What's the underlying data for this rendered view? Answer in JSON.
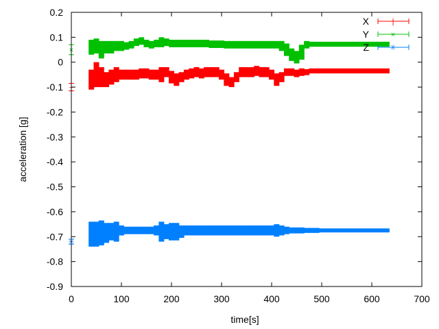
{
  "chart_data": {
    "type": "scatter",
    "title": "",
    "xlabel": "time[s]",
    "ylabel": "acceleration [g]",
    "xlim": [
      0,
      700
    ],
    "ylim": [
      -0.9,
      0.2
    ],
    "xticks": [
      "0",
      "100",
      "200",
      "300",
      "400",
      "500",
      "600",
      "700"
    ],
    "yticks": [
      "0.2",
      "0.1",
      "0",
      "-0.1",
      "-0.2",
      "-0.3",
      "-0.4",
      "-0.5",
      "-0.6",
      "-0.7",
      "-0.8",
      "-0.9"
    ],
    "grid": false,
    "legend_position": "top-right",
    "error_bars": true,
    "x": [
      0,
      40,
      50,
      60,
      70,
      80,
      90,
      100,
      110,
      120,
      130,
      140,
      150,
      160,
      170,
      180,
      190,
      200,
      210,
      220,
      230,
      240,
      250,
      260,
      270,
      280,
      290,
      300,
      310,
      320,
      330,
      340,
      350,
      360,
      370,
      380,
      390,
      400,
      410,
      420,
      430,
      440,
      450,
      460,
      470,
      480,
      490,
      500,
      510,
      520,
      530,
      540,
      550,
      560,
      570,
      580,
      590,
      600,
      610,
      620,
      630
    ],
    "series": [
      {
        "name": "X",
        "color": "#ff0000",
        "values": [
          -0.1,
          -0.07,
          -0.05,
          -0.06,
          -0.07,
          -0.06,
          -0.05,
          -0.05,
          -0.05,
          -0.05,
          -0.05,
          -0.045,
          -0.045,
          -0.05,
          -0.05,
          -0.05,
          -0.04,
          -0.06,
          -0.07,
          -0.06,
          -0.05,
          -0.045,
          -0.04,
          -0.045,
          -0.04,
          -0.04,
          -0.04,
          -0.05,
          -0.07,
          -0.08,
          -0.06,
          -0.04,
          -0.04,
          -0.04,
          -0.035,
          -0.04,
          -0.04,
          -0.05,
          -0.07,
          -0.06,
          -0.04,
          -0.04,
          -0.045,
          -0.04,
          -0.04,
          -0.035,
          -0.035,
          -0.035,
          -0.035,
          -0.035,
          -0.035,
          -0.035,
          -0.035,
          -0.035,
          -0.035,
          -0.035,
          -0.035,
          -0.035,
          -0.035,
          -0.035,
          -0.035
        ],
        "errors": [
          0.015,
          0.04,
          0.05,
          0.04,
          0.03,
          0.03,
          0.03,
          0.02,
          0.02,
          0.02,
          0.02,
          0.02,
          0.02,
          0.02,
          0.02,
          0.03,
          0.02,
          0.025,
          0.025,
          0.02,
          0.02,
          0.02,
          0.02,
          0.02,
          0.02,
          0.02,
          0.02,
          0.02,
          0.025,
          0.02,
          0.02,
          0.02,
          0.02,
          0.02,
          0.02,
          0.02,
          0.02,
          0.02,
          0.025,
          0.02,
          0.015,
          0.015,
          0.015,
          0.015,
          0.012,
          0.01,
          0.01,
          0.01,
          0.01,
          0.01,
          0.01,
          0.01,
          0.01,
          0.01,
          0.01,
          0.01,
          0.01,
          0.01,
          0.01,
          0.01,
          0.01
        ]
      },
      {
        "name": "Y",
        "color": "#00c000",
        "values": [
          0.05,
          0.06,
          0.065,
          0.05,
          0.06,
          0.06,
          0.065,
          0.065,
          0.065,
          0.07,
          0.08,
          0.085,
          0.075,
          0.07,
          0.075,
          0.08,
          0.08,
          0.075,
          0.075,
          0.075,
          0.075,
          0.075,
          0.075,
          0.075,
          0.075,
          0.072,
          0.072,
          0.072,
          0.07,
          0.07,
          0.07,
          0.07,
          0.07,
          0.07,
          0.07,
          0.07,
          0.07,
          0.07,
          0.07,
          0.065,
          0.05,
          0.03,
          0.02,
          0.04,
          0.07,
          0.072,
          0.072,
          0.072,
          0.072,
          0.072,
          0.072,
          0.072,
          0.072,
          0.072,
          0.072,
          0.072,
          0.072,
          0.072,
          0.072,
          0.072,
          0.072
        ],
        "errors": [
          0.02,
          0.03,
          0.03,
          0.035,
          0.025,
          0.025,
          0.02,
          0.02,
          0.015,
          0.015,
          0.015,
          0.015,
          0.015,
          0.015,
          0.015,
          0.02,
          0.015,
          0.015,
          0.015,
          0.015,
          0.015,
          0.015,
          0.015,
          0.015,
          0.015,
          0.015,
          0.015,
          0.015,
          0.015,
          0.015,
          0.015,
          0.015,
          0.015,
          0.015,
          0.015,
          0.015,
          0.015,
          0.015,
          0.015,
          0.02,
          0.025,
          0.025,
          0.025,
          0.03,
          0.015,
          0.01,
          0.01,
          0.01,
          0.01,
          0.01,
          0.01,
          0.01,
          0.01,
          0.01,
          0.01,
          0.01,
          0.01,
          0.01,
          0.01,
          0.01,
          0.01
        ]
      },
      {
        "name": "Z",
        "color": "#0080ff",
        "values": [
          -0.72,
          -0.69,
          -0.69,
          -0.685,
          -0.685,
          -0.68,
          -0.68,
          -0.675,
          -0.675,
          -0.675,
          -0.675,
          -0.675,
          -0.675,
          -0.675,
          -0.675,
          -0.68,
          -0.68,
          -0.68,
          -0.68,
          -0.68,
          -0.675,
          -0.675,
          -0.675,
          -0.675,
          -0.675,
          -0.675,
          -0.675,
          -0.675,
          -0.675,
          -0.675,
          -0.675,
          -0.675,
          -0.675,
          -0.675,
          -0.675,
          -0.675,
          -0.675,
          -0.675,
          -0.675,
          -0.675,
          -0.675,
          -0.675,
          -0.675,
          -0.675,
          -0.675,
          -0.675,
          -0.675,
          -0.675,
          -0.675,
          -0.675,
          -0.675,
          -0.675,
          -0.675,
          -0.675,
          -0.675,
          -0.675,
          -0.675,
          -0.675,
          -0.675,
          -0.675,
          -0.675
        ],
        "errors": [
          0.01,
          0.05,
          0.05,
          0.05,
          0.04,
          0.035,
          0.04,
          0.02,
          0.015,
          0.015,
          0.015,
          0.015,
          0.015,
          0.015,
          0.02,
          0.04,
          0.03,
          0.035,
          0.035,
          0.025,
          0.02,
          0.02,
          0.02,
          0.02,
          0.02,
          0.02,
          0.02,
          0.02,
          0.02,
          0.02,
          0.02,
          0.02,
          0.02,
          0.02,
          0.02,
          0.02,
          0.02,
          0.02,
          0.025,
          0.02,
          0.015,
          0.012,
          0.012,
          0.012,
          0.01,
          0.01,
          0.01,
          0.008,
          0.008,
          0.008,
          0.008,
          0.008,
          0.008,
          0.008,
          0.008,
          0.008,
          0.008,
          0.008,
          0.008,
          0.008,
          0.008
        ]
      }
    ]
  }
}
